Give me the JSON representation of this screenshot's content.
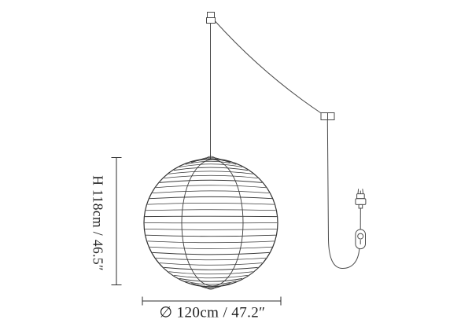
{
  "diagram": {
    "type": "product-dimension-diagram",
    "height_label": "H 118cm / 46.5″",
    "width_label": "∅ 120cm / 47.2″",
    "height_cm": 118,
    "height_in": 46.5,
    "diameter_cm": 120,
    "diameter_in": 47.2,
    "lantern": {
      "rib_count": 32
    },
    "colors": {
      "line": "#4a4a4a",
      "outline": "#333333",
      "text": "#1f1f1f",
      "background": "#ffffff"
    }
  }
}
